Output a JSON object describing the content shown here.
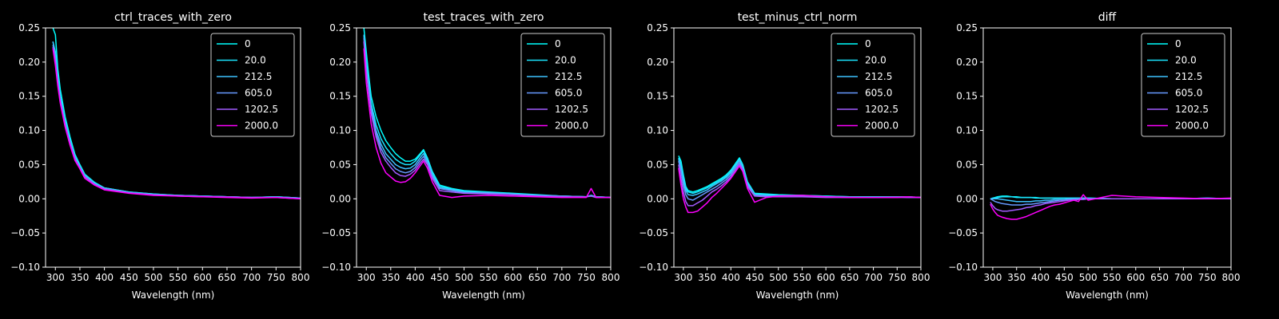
{
  "style": {
    "background": "#000000",
    "axis_color": "#ffffff",
    "series_colors": [
      "#00ffff",
      "#1ae5ff",
      "#3dc2ff",
      "#6699ff",
      "#a35cff",
      "#ff00ff"
    ]
  },
  "chart_data": [
    {
      "type": "line",
      "title": "ctrl_traces_with_zero",
      "xlabel": "Wavelength (nm)",
      "ylabel": "",
      "xlim": [
        280,
        800
      ],
      "ylim": [
        -0.1,
        0.25
      ],
      "xticks": [
        "300",
        "350",
        "400",
        "450",
        "500",
        "550",
        "600",
        "650",
        "700",
        "750",
        "800"
      ],
      "yticks": [
        "−0.10",
        "−0.05",
        "0.00",
        "0.05",
        "0.10",
        "0.15",
        "0.20",
        "0.25"
      ],
      "grid": false,
      "legend": "top-right",
      "x": [
        295,
        300,
        305,
        310,
        320,
        330,
        340,
        350,
        360,
        380,
        400,
        450,
        500,
        550,
        600,
        650,
        700,
        750,
        800
      ],
      "series": [
        {
          "name": "0",
          "values": [
            0.25,
            0.24,
            0.19,
            0.16,
            0.12,
            0.09,
            0.065,
            0.05,
            0.036,
            0.024,
            0.016,
            0.01,
            0.007,
            0.005,
            0.004,
            0.003,
            0.002,
            0.003,
            0.001
          ]
        },
        {
          "name": "20.0",
          "values": [
            0.23,
            0.215,
            0.18,
            0.15,
            0.115,
            0.085,
            0.062,
            0.048,
            0.035,
            0.023,
            0.016,
            0.01,
            0.007,
            0.005,
            0.004,
            0.003,
            0.002,
            0.003,
            0.001
          ]
        },
        {
          "name": "212.5",
          "values": [
            0.23,
            0.21,
            0.175,
            0.148,
            0.112,
            0.084,
            0.061,
            0.047,
            0.034,
            0.022,
            0.015,
            0.009,
            0.006,
            0.005,
            0.004,
            0.003,
            0.002,
            0.003,
            0.001
          ]
        },
        {
          "name": "605.0",
          "values": [
            0.225,
            0.205,
            0.172,
            0.145,
            0.11,
            0.082,
            0.06,
            0.046,
            0.033,
            0.022,
            0.015,
            0.009,
            0.006,
            0.005,
            0.004,
            0.003,
            0.002,
            0.002,
            0.001
          ]
        },
        {
          "name": "1202.5",
          "values": [
            0.222,
            0.2,
            0.17,
            0.142,
            0.108,
            0.08,
            0.058,
            0.045,
            0.032,
            0.021,
            0.014,
            0.009,
            0.006,
            0.004,
            0.003,
            0.003,
            0.002,
            0.002,
            0.0
          ]
        },
        {
          "name": "2000.0",
          "values": [
            0.22,
            0.195,
            0.165,
            0.14,
            0.105,
            0.078,
            0.056,
            0.044,
            0.03,
            0.02,
            0.013,
            0.008,
            0.005,
            0.004,
            0.003,
            0.002,
            0.001,
            0.002,
            0.0
          ]
        }
      ]
    },
    {
      "type": "line",
      "title": "test_traces_with_zero",
      "xlabel": "Wavelength (nm)",
      "ylabel": "",
      "xlim": [
        280,
        800
      ],
      "ylim": [
        -0.1,
        0.25
      ],
      "xticks": [
        "300",
        "350",
        "400",
        "450",
        "500",
        "550",
        "600",
        "650",
        "700",
        "750",
        "800"
      ],
      "yticks": [
        "−0.10",
        "−0.05",
        "0.00",
        "0.05",
        "0.10",
        "0.15",
        "0.20",
        "0.25"
      ],
      "grid": false,
      "legend": "top-right",
      "x": [
        295,
        300,
        305,
        310,
        320,
        330,
        340,
        350,
        360,
        370,
        380,
        390,
        400,
        410,
        417,
        425,
        435,
        450,
        475,
        500,
        550,
        600,
        650,
        700,
        750,
        760,
        770,
        800
      ],
      "series": [
        {
          "name": "0",
          "values": [
            0.25,
            0.215,
            0.18,
            0.15,
            0.12,
            0.1,
            0.085,
            0.075,
            0.066,
            0.06,
            0.055,
            0.055,
            0.058,
            0.066,
            0.072,
            0.06,
            0.04,
            0.02,
            0.015,
            0.012,
            0.01,
            0.008,
            0.006,
            0.004,
            0.003,
            0.005,
            0.003,
            0.002
          ]
        },
        {
          "name": "20.0",
          "values": [
            0.24,
            0.2,
            0.17,
            0.14,
            0.108,
            0.088,
            0.075,
            0.066,
            0.058,
            0.053,
            0.05,
            0.05,
            0.055,
            0.064,
            0.07,
            0.058,
            0.038,
            0.018,
            0.014,
            0.011,
            0.009,
            0.007,
            0.005,
            0.004,
            0.003,
            0.005,
            0.003,
            0.002
          ]
        },
        {
          "name": "212.5",
          "values": [
            0.24,
            0.195,
            0.165,
            0.135,
            0.1,
            0.08,
            0.066,
            0.058,
            0.05,
            0.046,
            0.044,
            0.045,
            0.05,
            0.06,
            0.066,
            0.055,
            0.035,
            0.016,
            0.013,
            0.01,
            0.009,
            0.007,
            0.005,
            0.004,
            0.003,
            0.005,
            0.003,
            0.002
          ]
        },
        {
          "name": "605.0",
          "values": [
            0.235,
            0.19,
            0.16,
            0.13,
            0.095,
            0.074,
            0.06,
            0.052,
            0.044,
            0.04,
            0.038,
            0.04,
            0.046,
            0.056,
            0.062,
            0.052,
            0.033,
            0.015,
            0.012,
            0.009,
            0.008,
            0.006,
            0.005,
            0.004,
            0.003,
            0.004,
            0.003,
            0.002
          ]
        },
        {
          "name": "1202.5",
          "values": [
            0.23,
            0.185,
            0.155,
            0.125,
            0.09,
            0.068,
            0.055,
            0.046,
            0.038,
            0.034,
            0.033,
            0.036,
            0.042,
            0.052,
            0.058,
            0.05,
            0.03,
            0.012,
            0.01,
            0.008,
            0.007,
            0.006,
            0.004,
            0.003,
            0.003,
            0.004,
            0.002,
            0.002
          ]
        },
        {
          "name": "2000.0",
          "values": [
            0.22,
            0.17,
            0.14,
            0.11,
            0.075,
            0.052,
            0.038,
            0.032,
            0.026,
            0.024,
            0.025,
            0.03,
            0.038,
            0.048,
            0.055,
            0.045,
            0.025,
            0.005,
            0.002,
            0.004,
            0.005,
            0.004,
            0.003,
            0.002,
            0.002,
            0.015,
            0.002,
            0.002
          ]
        }
      ]
    },
    {
      "type": "line",
      "title": "test_minus_ctrl_norm",
      "xlabel": "Wavelength (nm)",
      "ylabel": "",
      "xlim": [
        280,
        800
      ],
      "ylim": [
        -0.1,
        0.25
      ],
      "xticks": [
        "300",
        "350",
        "400",
        "450",
        "500",
        "550",
        "600",
        "650",
        "700",
        "750",
        "800"
      ],
      "yticks": [
        "−0.10",
        "−0.05",
        "0.00",
        "0.05",
        "0.10",
        "0.15",
        "0.20",
        "0.25"
      ],
      "grid": false,
      "legend": "top-right",
      "x": [
        290,
        295,
        300,
        305,
        310,
        320,
        330,
        340,
        350,
        360,
        370,
        380,
        390,
        400,
        410,
        418,
        425,
        435,
        450,
        475,
        500,
        550,
        600,
        650,
        700,
        750,
        770,
        800
      ],
      "series": [
        {
          "name": "0",
          "values": [
            0.063,
            0.055,
            0.035,
            0.018,
            0.012,
            0.01,
            0.012,
            0.015,
            0.018,
            0.022,
            0.026,
            0.03,
            0.035,
            0.042,
            0.052,
            0.06,
            0.05,
            0.025,
            0.008,
            0.007,
            0.006,
            0.005,
            0.004,
            0.003,
            0.003,
            0.003,
            0.003,
            0.002
          ]
        },
        {
          "name": "20.0",
          "values": [
            0.06,
            0.05,
            0.03,
            0.015,
            0.01,
            0.008,
            0.01,
            0.013,
            0.016,
            0.02,
            0.024,
            0.028,
            0.033,
            0.04,
            0.05,
            0.058,
            0.048,
            0.024,
            0.007,
            0.006,
            0.005,
            0.005,
            0.004,
            0.003,
            0.003,
            0.003,
            0.003,
            0.002
          ]
        },
        {
          "name": "212.5",
          "values": [
            0.058,
            0.045,
            0.025,
            0.012,
            0.006,
            0.005,
            0.007,
            0.01,
            0.013,
            0.018,
            0.022,
            0.026,
            0.031,
            0.038,
            0.048,
            0.056,
            0.046,
            0.022,
            0.006,
            0.005,
            0.005,
            0.004,
            0.003,
            0.003,
            0.002,
            0.003,
            0.003,
            0.002
          ]
        },
        {
          "name": "605.0",
          "values": [
            0.055,
            0.04,
            0.02,
            0.006,
            0.0,
            -0.002,
            0.002,
            0.006,
            0.01,
            0.014,
            0.018,
            0.023,
            0.028,
            0.035,
            0.045,
            0.053,
            0.044,
            0.02,
            0.005,
            0.004,
            0.004,
            0.004,
            0.003,
            0.002,
            0.002,
            0.003,
            0.002,
            0.002
          ]
        },
        {
          "name": "1202.5",
          "values": [
            0.05,
            0.03,
            0.01,
            -0.004,
            -0.01,
            -0.01,
            -0.006,
            -0.002,
            0.004,
            0.01,
            0.014,
            0.019,
            0.025,
            0.032,
            0.042,
            0.05,
            0.042,
            0.018,
            0.004,
            0.003,
            0.003,
            0.003,
            0.002,
            0.002,
            0.002,
            0.002,
            0.002,
            0.002
          ]
        },
        {
          "name": "2000.0",
          "values": [
            0.045,
            0.02,
            0.0,
            -0.012,
            -0.02,
            -0.02,
            -0.018,
            -0.012,
            -0.006,
            0.002,
            0.008,
            0.015,
            0.022,
            0.03,
            0.04,
            0.048,
            0.04,
            0.015,
            -0.005,
            0.002,
            0.004,
            0.005,
            0.003,
            0.002,
            0.002,
            0.002,
            0.003,
            0.002
          ]
        }
      ]
    },
    {
      "type": "line",
      "title": "diff",
      "xlabel": "Wavelength (nm)",
      "ylabel": "",
      "xlim": [
        280,
        800
      ],
      "ylim": [
        -0.1,
        0.25
      ],
      "xticks": [
        "300",
        "350",
        "400",
        "450",
        "500",
        "550",
        "600",
        "650",
        "700",
        "750",
        "800"
      ],
      "yticks": [
        "−0.10",
        "−0.05",
        "0.00",
        "0.05",
        "0.10",
        "0.15",
        "0.20",
        "0.25"
      ],
      "grid": false,
      "legend": "top-right",
      "x": [
        295,
        300,
        305,
        310,
        320,
        330,
        340,
        350,
        360,
        370,
        380,
        390,
        400,
        410,
        420,
        430,
        440,
        450,
        460,
        470,
        480,
        490,
        500,
        550,
        600,
        650,
        700,
        750,
        800
      ],
      "series": [
        {
          "name": "0",
          "values": [
            0.0,
            0.001,
            0.002,
            0.003,
            0.004,
            0.004,
            0.003,
            0.003,
            0.002,
            0.002,
            0.002,
            0.002,
            0.001,
            0.001,
            0.001,
            0.001,
            0.001,
            0.001,
            0.001,
            0.001,
            0.001,
            0.001,
            0.001,
            0.0,
            0.0,
            0.0,
            0.0,
            0.001,
            0.0
          ]
        },
        {
          "name": "20.0",
          "values": [
            0.0,
            0.0,
            0.001,
            0.002,
            0.003,
            0.003,
            0.003,
            0.002,
            0.002,
            0.002,
            0.002,
            0.001,
            0.001,
            0.001,
            0.001,
            0.001,
            0.001,
            0.001,
            0.001,
            0.001,
            0.001,
            0.001,
            0.001,
            0.0,
            0.0,
            0.0,
            0.0,
            0.0,
            0.0
          ]
        },
        {
          "name": "212.5",
          "values": [
            0.0,
            0.0,
            0.0,
            0.0,
            -0.001,
            -0.002,
            -0.003,
            -0.004,
            -0.004,
            -0.004,
            -0.004,
            -0.003,
            -0.003,
            -0.002,
            -0.002,
            -0.001,
            -0.001,
            -0.001,
            0.0,
            0.0,
            0.0,
            0.0,
            0.0,
            0.0,
            0.0,
            0.0,
            0.0,
            0.0,
            0.0
          ]
        },
        {
          "name": "605.0",
          "values": [
            0.0,
            -0.002,
            -0.004,
            -0.005,
            -0.007,
            -0.008,
            -0.009,
            -0.009,
            -0.009,
            -0.008,
            -0.008,
            -0.007,
            -0.006,
            -0.005,
            -0.004,
            -0.003,
            -0.002,
            -0.002,
            -0.001,
            -0.001,
            0.0,
            0.0,
            0.0,
            0.0,
            0.0,
            0.0,
            0.0,
            0.001,
            0.0
          ]
        },
        {
          "name": "1202.5",
          "values": [
            -0.005,
            -0.01,
            -0.014,
            -0.016,
            -0.018,
            -0.018,
            -0.017,
            -0.016,
            -0.015,
            -0.013,
            -0.012,
            -0.01,
            -0.009,
            -0.007,
            -0.006,
            -0.005,
            -0.004,
            -0.003,
            -0.002,
            -0.002,
            -0.001,
            -0.001,
            0.0,
            0.0,
            0.0,
            0.0,
            0.0,
            0.0,
            0.0
          ]
        },
        {
          "name": "2000.0",
          "values": [
            -0.008,
            -0.015,
            -0.02,
            -0.024,
            -0.027,
            -0.029,
            -0.03,
            -0.03,
            -0.028,
            -0.026,
            -0.023,
            -0.02,
            -0.017,
            -0.014,
            -0.011,
            -0.009,
            -0.008,
            -0.006,
            -0.004,
            -0.002,
            -0.004,
            0.006,
            -0.002,
            0.005,
            0.003,
            0.002,
            0.001,
            0.0,
            0.001
          ]
        }
      ]
    }
  ]
}
